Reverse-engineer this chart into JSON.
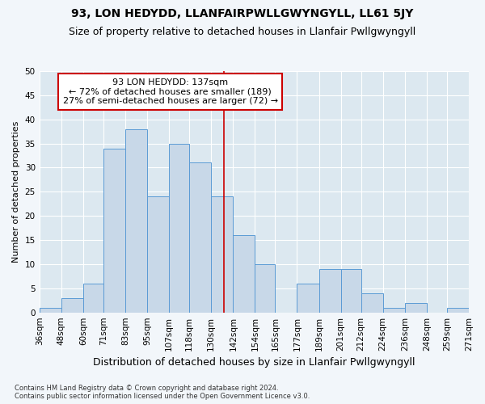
{
  "title": "93, LON HEDYDD, LLANFAIRPWLLGWYNGYLL, LL61 5JY",
  "subtitle": "Size of property relative to detached houses in Llanfair Pwllgwyngyll",
  "xlabel": "Distribution of detached houses by size in Llanfair Pwllgwyngyll",
  "ylabel": "Number of detached properties",
  "footnote": "Contains HM Land Registry data © Crown copyright and database right 2024.\nContains public sector information licensed under the Open Government Licence v3.0.",
  "bin_edges": [
    36,
    48,
    60,
    71,
    83,
    95,
    107,
    118,
    130,
    142,
    154,
    165,
    177,
    189,
    201,
    212,
    224,
    236,
    248,
    259,
    271
  ],
  "bar_heights": [
    1,
    3,
    6,
    34,
    38,
    24,
    35,
    31,
    24,
    16,
    10,
    0,
    6,
    9,
    9,
    4,
    1,
    2,
    0,
    1
  ],
  "bar_color": "#c8d8e8",
  "bar_edgecolor": "#5b9bd5",
  "property_size": 137,
  "vline_color": "#cc0000",
  "annotation_line1": "93 LON HEDYDD: 137sqm",
  "annotation_line2": "← 72% of detached houses are smaller (189)",
  "annotation_line3": "27% of semi-detached houses are larger (72) →",
  "annotation_box_color": "#ffffff",
  "annotation_box_edgecolor": "#cc0000",
  "ylim": [
    0,
    50
  ],
  "yticks": [
    0,
    5,
    10,
    15,
    20,
    25,
    30,
    35,
    40,
    45,
    50
  ],
  "background_color": "#dce8f0",
  "grid_color": "#ffffff",
  "title_fontsize": 10,
  "subtitle_fontsize": 9,
  "xlabel_fontsize": 9,
  "ylabel_fontsize": 8,
  "tick_fontsize": 7.5,
  "annotation_fontsize": 8
}
